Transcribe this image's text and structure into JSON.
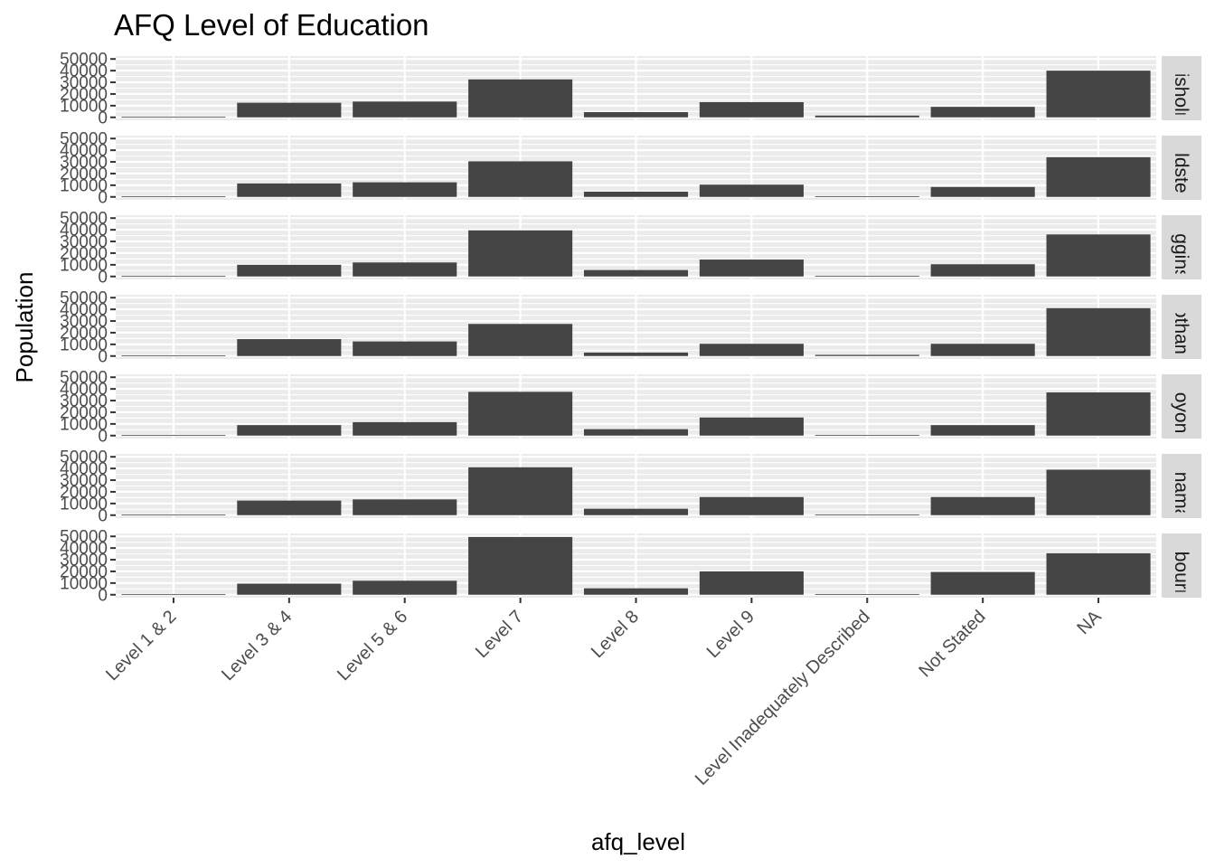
{
  "chart_data": {
    "type": "bar",
    "title": "AFQ Level of Education",
    "xlabel": "afq_level",
    "ylabel": "Population",
    "ylim": [
      0,
      50000
    ],
    "yticks": [
      "0",
      "10000",
      "20000",
      "30000",
      "40000",
      "50000"
    ],
    "grid": true,
    "facet_strip_position": "right",
    "categories": [
      "Level 1 & 2",
      "Level 3 & 4",
      "Level 5 & 6",
      "Level 7",
      "Level 8",
      "Level 9",
      "Level Inadequately Described",
      "Not Stated",
      "NA"
    ],
    "panels": [
      {
        "label": "Chisholm",
        "values": [
          400,
          12500,
          13500,
          32500,
          4500,
          13000,
          1500,
          9000,
          40000
        ]
      },
      {
        "label": "Goldstein",
        "values": [
          400,
          11500,
          12500,
          30500,
          4500,
          10500,
          500,
          8500,
          34000
        ]
      },
      {
        "label": "Higgins",
        "values": [
          400,
          10000,
          12000,
          39500,
          5500,
          14500,
          500,
          10500,
          36000
        ]
      },
      {
        "label": "Hotham",
        "values": [
          400,
          14500,
          12500,
          27500,
          3000,
          10500,
          1000,
          10500,
          41000
        ]
      },
      {
        "label": "Kooyong",
        "values": [
          400,
          9000,
          11500,
          37500,
          5500,
          15500,
          500,
          9000,
          37000
        ]
      },
      {
        "label": "Macnamara",
        "values": [
          400,
          12500,
          13500,
          41000,
          5500,
          15500,
          500,
          15500,
          39000
        ]
      },
      {
        "label": "Melbourne",
        "values": [
          400,
          9500,
          12000,
          49500,
          5500,
          20000,
          500,
          19500,
          35500
        ]
      }
    ]
  }
}
